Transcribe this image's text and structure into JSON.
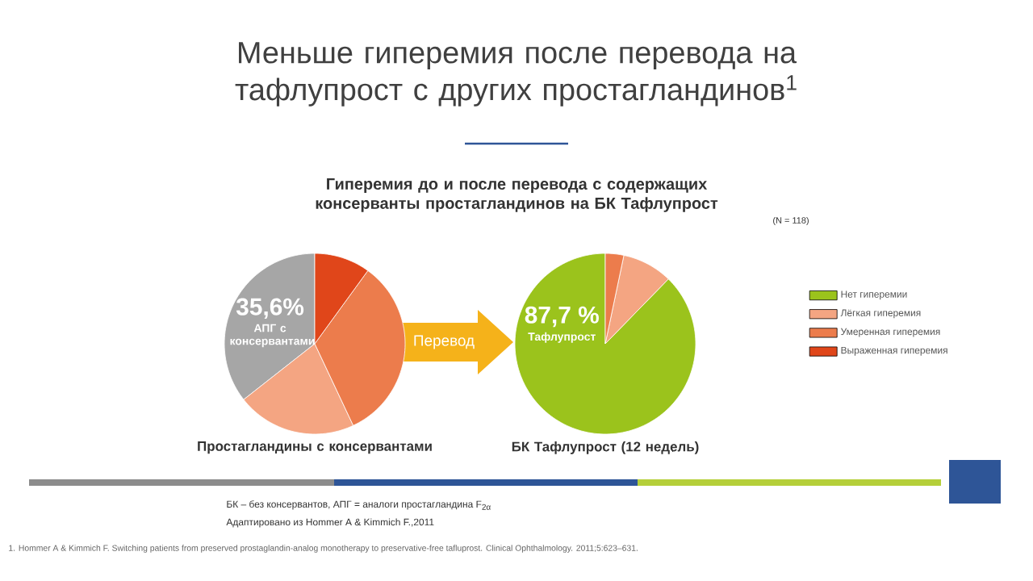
{
  "chart_data": [
    {
      "type": "other",
      "title": "Меньше гиперемия после перевода на тафлупрост с других простагландинов$^{1}$",
      "subtitle": "Гиперемия до и после перевода с содержащих консерванты простагландинов на БК Тафлупрост",
      "annotations": [
        "(N = 118)",
        "Перевод",
        "БК – без консервантов,   АПГ = аналоги простагландина  F$_{2α}$",
        "Адаптировано  из Hommer A & Kimmich F.,2011",
        "1. Hommer A & Kimmich F. Switching patients from preserved prostaglandin-analog monotherapy to preservative-free tafluprost. Clinical Ophthalmology. 2011;5:623–631."
      ]
    },
    {
      "type": "pie",
      "title": "Простагландины с консервантами",
      "categories": [
        null,
        null,
        null,
        null
      ],
      "values": [
        35.6,
        21.4,
        33.0,
        10.0
      ],
      "colors": [
        "#a6a6a6",
        "#f4a582",
        "#ec7c4c",
        "#e0461a"
      ],
      "value_labels": [
        "35,6%",
        null,
        null,
        null
      ],
      "annotations": [
        "АПГ с консервантами"
      ]
    },
    {
      "type": "pie",
      "title": "БК Тафлупрост  (12 недель)",
      "categories": [
        "Нет гиперемии",
        "Лёгкая гиперемия",
        "Умеренная гиперемия",
        "Выраженная гиперемия"
      ],
      "values": [
        87.7,
        9.0,
        3.3,
        0
      ],
      "colors": [
        "#9bc31c",
        "#f4a582",
        "#ec7c4c",
        "#e0461a"
      ],
      "value_labels": [
        "87,7 %",
        null,
        null,
        null
      ],
      "annotations": [
        "Тафлупрост"
      ],
      "legend": "right"
    }
  ]
}
